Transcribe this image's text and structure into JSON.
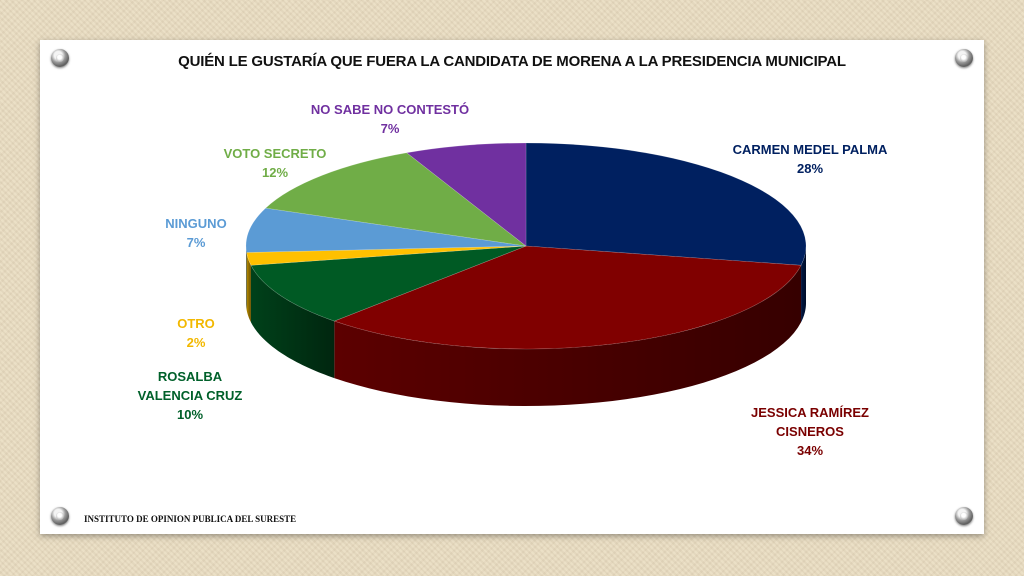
{
  "chart_data": {
    "type": "pie",
    "title": "QUIÉN LE GUSTARÍA QUE FUERA LA CANDIDATA DE MORENA A LA PRESIDENCIA MUNICIPAL",
    "unit": "%",
    "slices": [
      {
        "label": "CARMEN MEDEL PALMA",
        "value": 28,
        "color": "#002060",
        "label_color": "#002060"
      },
      {
        "label": "JESSICA RAMÍREZ CISNEROS",
        "value": 34,
        "color": "#800000",
        "label_color": "#7a0000"
      },
      {
        "label": "ROSALBA VALENCIA CRUZ",
        "value": 10,
        "color": "#005a24",
        "label_color": "#00602a"
      },
      {
        "label": "OTRO",
        "value": 2,
        "color": "#ffc000",
        "label_color": "#f2b800"
      },
      {
        "label": "NINGUNO",
        "value": 7,
        "color": "#5b9bd5",
        "label_color": "#5b9bd5"
      },
      {
        "label": "VOTO SECRETO",
        "value": 12,
        "color": "#70ad47",
        "label_color": "#70ad47"
      },
      {
        "label": "NO SABE NO CONTESTÓ",
        "value": 7,
        "color": "#7030a0",
        "label_color": "#7030a0"
      }
    ],
    "legend": "none"
  },
  "footer": "INSTITUTO DE OPINION PUBLICA DEL SURESTE"
}
